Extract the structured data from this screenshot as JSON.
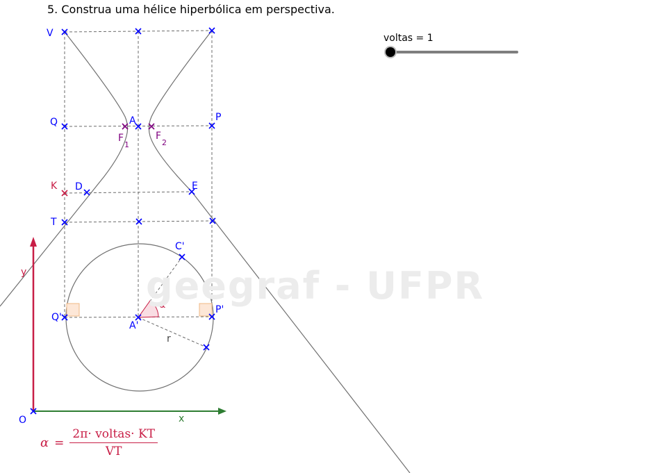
{
  "title": "5. Construa uma hélice hiperbólica em perspectiva.",
  "slider": {
    "label": "voltas = 1",
    "value": 1
  },
  "watermark": "geegraf - UFPR",
  "formula": {
    "lhs": "α",
    "eq": "=",
    "numerator": "2π· voltas· KT",
    "denominator": "VT"
  },
  "angle_label": "α",
  "radius_label": "r",
  "axes": {
    "x_label": "x",
    "y_label": "y",
    "origin_label": "O"
  },
  "points": {
    "V": "V",
    "Q": "Q",
    "K": "K",
    "T": "T",
    "A": "A",
    "P": "P",
    "D": "D",
    "E": "E",
    "F1": "F",
    "F1_sub": "1",
    "F2": "F",
    "F2_sub": "2",
    "Cp": "C'",
    "Qp": "Q'",
    "Ap": "A'",
    "Pp": "P'"
  },
  "colors": {
    "blue": "#0000ff",
    "purple": "#7f007f",
    "crimson": "#c81e46",
    "green": "#2e7d32",
    "gray": "#7a7a7a"
  }
}
